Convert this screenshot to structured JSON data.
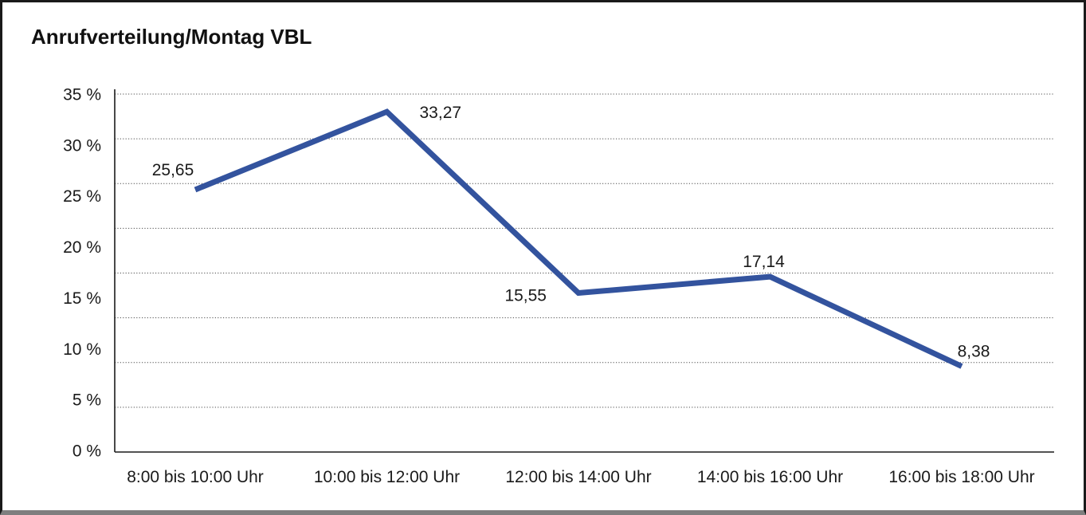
{
  "chart_data": {
    "type": "line",
    "title": "Anrufverteilung/Montag VBL",
    "categories": [
      "8:00 bis 10:00 Uhr",
      "10:00 bis 12:00 Uhr",
      "12:00 bis 14:00 Uhr",
      "14:00 bis 16:00 Uhr",
      "16:00 bis 18:00 Uhr"
    ],
    "values": [
      25.65,
      33.27,
      15.55,
      17.14,
      8.38
    ],
    "point_labels": [
      "25,65",
      "33,27",
      "15,55",
      "17,14",
      "8,38"
    ],
    "yticks": [
      "35 %",
      "30 %",
      "25 %",
      "20 %",
      "15 %",
      "10 %",
      "5 %",
      "0 %"
    ],
    "ylim": [
      0,
      35
    ],
    "xlabel": "",
    "ylabel": "",
    "legend": "none",
    "grid": "horizontal-dotted",
    "line_color": "#33539e",
    "text_color": "#1a1a1a",
    "axis_color": "#1a1a1a",
    "grid_color": "#4d4d4d"
  }
}
